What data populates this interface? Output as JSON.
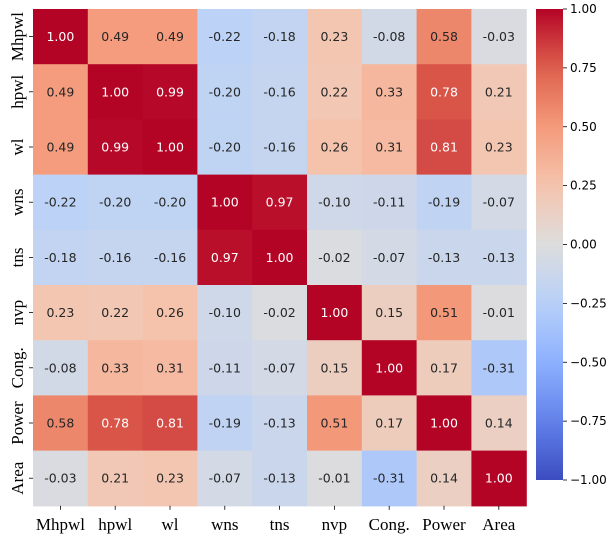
{
  "chart_data": {
    "type": "heatmap",
    "title": "",
    "xlabel": "",
    "ylabel": "",
    "labels": [
      "Mhpwl",
      "hpwl",
      "wl",
      "wns",
      "tns",
      "nvp",
      "Cong.",
      "Power",
      "Area"
    ],
    "matrix": [
      [
        1.0,
        0.49,
        0.49,
        -0.22,
        -0.18,
        0.23,
        -0.08,
        0.58,
        -0.03
      ],
      [
        0.49,
        1.0,
        0.99,
        -0.2,
        -0.16,
        0.22,
        0.33,
        0.78,
        0.21
      ],
      [
        0.49,
        0.99,
        1.0,
        -0.2,
        -0.16,
        0.26,
        0.31,
        0.81,
        0.23
      ],
      [
        -0.22,
        -0.2,
        -0.2,
        1.0,
        0.97,
        -0.1,
        -0.11,
        -0.19,
        -0.07
      ],
      [
        -0.18,
        -0.16,
        -0.16,
        0.97,
        1.0,
        -0.02,
        -0.07,
        -0.13,
        -0.13
      ],
      [
        0.23,
        0.22,
        0.26,
        -0.1,
        -0.02,
        1.0,
        0.15,
        0.51,
        -0.01
      ],
      [
        -0.08,
        0.33,
        0.31,
        -0.11,
        -0.07,
        0.15,
        1.0,
        0.17,
        -0.31
      ],
      [
        0.58,
        0.78,
        0.81,
        -0.19,
        -0.13,
        0.51,
        0.17,
        1.0,
        0.14
      ],
      [
        -0.03,
        0.21,
        0.23,
        -0.07,
        -0.13,
        -0.01,
        -0.31,
        0.14,
        1.0
      ]
    ],
    "colormap": "coolwarm",
    "vmin": -1.0,
    "vmax": 1.0,
    "colorbar_ticks": [
      -1.0,
      -0.75,
      -0.5,
      -0.25,
      0.0,
      0.25,
      0.5,
      0.75,
      1.0
    ],
    "colorbar_tick_labels": [
      "−1.00",
      "−0.75",
      "−0.50",
      "−0.25",
      "0.00",
      "0.25",
      "0.50",
      "0.75",
      "1.00"
    ]
  }
}
